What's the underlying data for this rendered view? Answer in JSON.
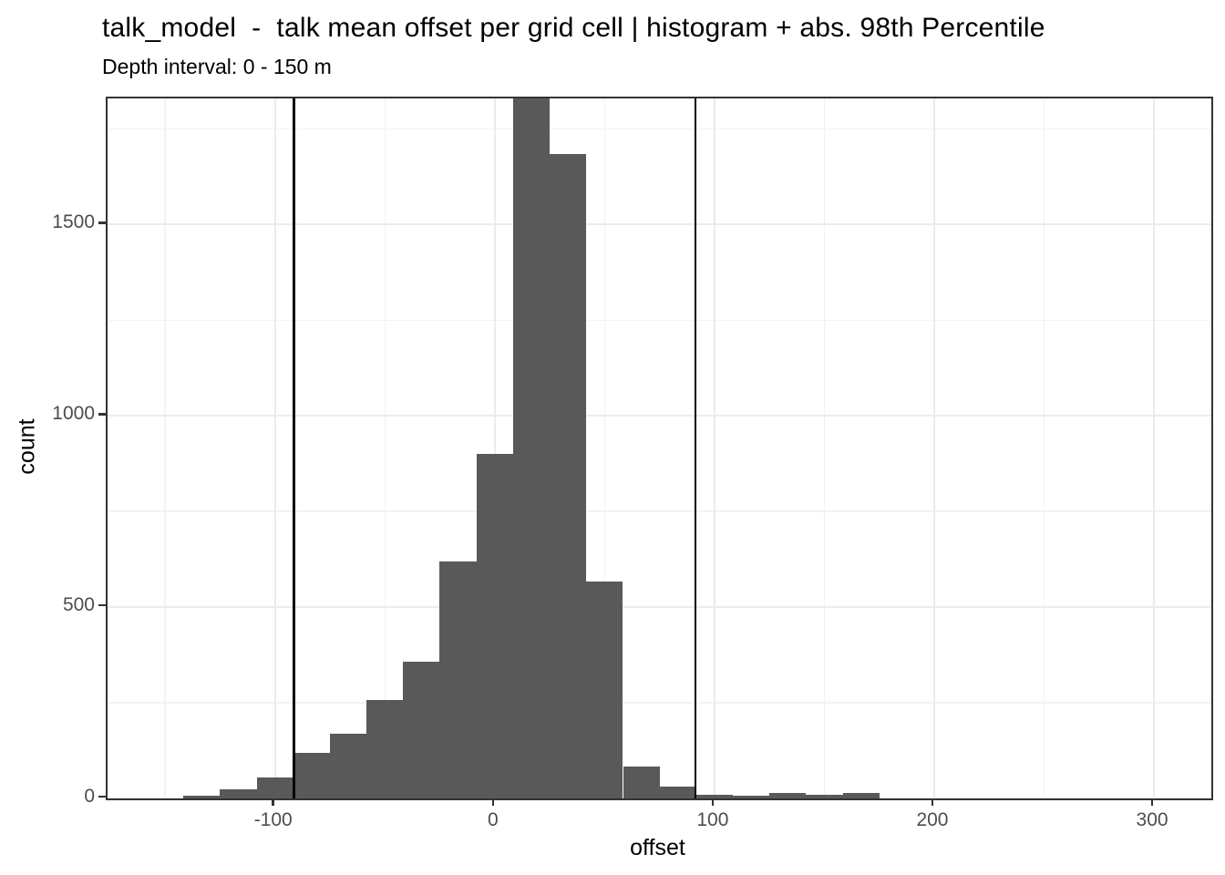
{
  "title": "talk_model  -  talk mean offset per grid cell | histogram + abs. 98th Percentile",
  "subtitle": "Depth interval: 0 - 150 m",
  "chart_data": {
    "type": "bar",
    "subtype": "histogram",
    "title": "talk_model  -  talk mean offset per grid cell | histogram + abs. 98th Percentile",
    "subtitle": "Depth interval: 0 - 150 m",
    "xlabel": "offset",
    "ylabel": "count",
    "x_domain": [
      -176.2,
      326.1
    ],
    "y_domain": [
      0,
      1830
    ],
    "x_major_ticks": [
      -100,
      0,
      100,
      200,
      300
    ],
    "x_minor_gridlines": [
      -150,
      -50,
      50,
      150,
      250
    ],
    "y_major_ticks": [
      0,
      500,
      1000,
      1500
    ],
    "y_minor_gridlines": [
      250,
      750,
      1250,
      1750
    ],
    "grid": true,
    "legend": false,
    "histogram": {
      "binwidth": 16.667,
      "centers": [
        -150,
        -133.3,
        -116.7,
        -100,
        -83.3,
        -66.7,
        -50,
        -33.3,
        -16.7,
        0,
        16.7,
        33.3,
        50,
        66.7,
        83.3,
        100,
        116.7,
        133.3,
        150,
        166.7,
        183.3,
        200,
        216.7,
        233.3,
        250,
        266.7,
        283.3,
        300
      ],
      "counts": [
        1,
        8,
        23,
        55,
        120,
        170,
        258,
        357,
        620,
        900,
        1830,
        1685,
        568,
        83,
        30,
        10,
        8,
        14,
        10,
        15,
        0,
        0,
        0,
        0,
        0,
        0,
        0,
        1
      ],
      "tallest_bin_clipped_at_top": true
    },
    "vlines": [
      -91.3,
      91.3
    ],
    "vline_meaning": "abs. 98th Percentile",
    "colors": {
      "bar": "#595959",
      "vline": "#000000",
      "panel_border": "#333333",
      "grid_major": "#ebebeb",
      "grid_minor": "#f2f2f2",
      "tick_label": "#4d4d4d",
      "text": "#000000",
      "background": "#ffffff"
    }
  }
}
